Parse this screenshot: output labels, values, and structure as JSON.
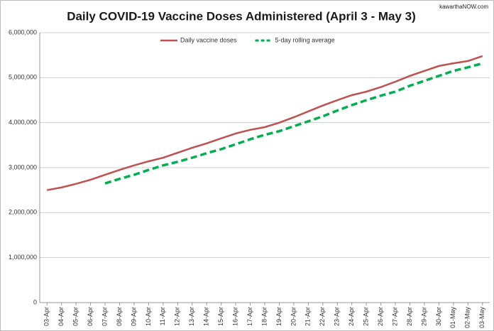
{
  "chart_data": {
    "type": "line",
    "title": "Daily COVID-19 Vaccine Doses Administered (April 3 - May 3)",
    "watermark": "kawarthaNOW.com",
    "categories": [
      "03-Apr",
      "04-Apr",
      "05-Apr",
      "06-Apr",
      "07-Apr",
      "08-Apr",
      "09-Apr",
      "10-Apr",
      "11-Apr",
      "12-Apr",
      "13-Apr",
      "14-Apr",
      "15-Apr",
      "16-Apr",
      "17-Apr",
      "18-Apr",
      "19-Apr",
      "20-Apr",
      "21-Apr",
      "22-Apr",
      "23-Apr",
      "24-Apr",
      "25-Apr",
      "26-Apr",
      "27-Apr",
      "28-Apr",
      "29-Apr",
      "30-Apr",
      "01-May",
      "02-May",
      "03-May"
    ],
    "series": [
      {
        "name": "Daily vaccine doses",
        "color": "#c0504d",
        "dashed": false,
        "values": [
          2500000,
          2560000,
          2640000,
          2730000,
          2840000,
          2950000,
          3050000,
          3140000,
          3220000,
          3330000,
          3440000,
          3540000,
          3650000,
          3760000,
          3840000,
          3900000,
          4000000,
          4120000,
          4250000,
          4380000,
          4500000,
          4610000,
          4690000,
          4790000,
          4910000,
          5040000,
          5150000,
          5260000,
          5320000,
          5370000,
          5480000
        ]
      },
      {
        "name": "5-day rolling average",
        "color": "#00b050",
        "dashed": true,
        "values": [
          null,
          null,
          null,
          null,
          2650000,
          2750000,
          2840000,
          2950000,
          3050000,
          3130000,
          3220000,
          3320000,
          3410000,
          3520000,
          3630000,
          3730000,
          3810000,
          3920000,
          4030000,
          4140000,
          4270000,
          4390000,
          4500000,
          4600000,
          4690000,
          4820000,
          4930000,
          5040000,
          5150000,
          5230000,
          5320000
        ]
      }
    ],
    "ylim": [
      0,
      6000000
    ],
    "yticks": [
      0,
      {
        "value": 1000000,
        "label": "1,000,000"
      },
      {
        "value": 2000000,
        "label": "2,000,000"
      },
      {
        "value": 3000000,
        "label": "3,000,000"
      },
      {
        "value": 4000000,
        "label": "4,000,000"
      },
      {
        "value": 5000000,
        "label": "5,000,000"
      },
      {
        "value": 6000000,
        "label": "6,000,000"
      }
    ],
    "grid": true,
    "legend": "top"
  }
}
